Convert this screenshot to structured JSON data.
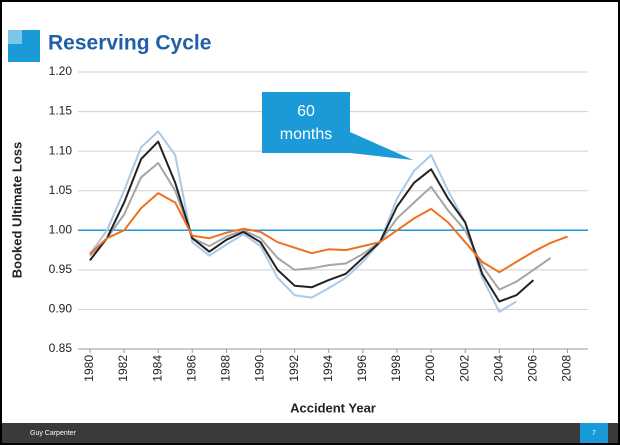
{
  "title": "Reserving Cycle",
  "footer": {
    "source": "Guy Carpenter",
    "page": "7"
  },
  "chart_data": {
    "type": "line",
    "xlabel": "Accident Year",
    "ylabel": "Booked Ultimate Loss",
    "annotation": {
      "lines": [
        "60",
        "months"
      ]
    },
    "x": [
      1980,
      1981,
      1982,
      1983,
      1984,
      1985,
      1986,
      1987,
      1988,
      1989,
      1990,
      1991,
      1992,
      1993,
      1994,
      1995,
      1996,
      1997,
      1998,
      1999,
      2000,
      2001,
      2002,
      2003,
      2004,
      2005,
      2006,
      2007,
      2008
    ],
    "xlim": [
      1979.3,
      2009.2
    ],
    "xticks": [
      1980,
      1982,
      1984,
      1986,
      1988,
      1990,
      1992,
      1994,
      1996,
      1998,
      2000,
      2002,
      2004,
      2006,
      2008
    ],
    "ylim": [
      0.85,
      1.2
    ],
    "yticks": [
      0.85,
      0.95,
      {
        "value": 0.9,
        "label": "0.90"
      },
      {
        "value": 1.0,
        "label": "1.00"
      },
      1.05,
      {
        "value": 1.1,
        "label": "1.10"
      },
      1.15,
      {
        "value": 1.2,
        "label": "1.20"
      }
    ],
    "grid": true,
    "reference_line": {
      "value": 1.0,
      "color": "#1a9ad6"
    },
    "series": [
      {
        "color": "#a9c9e6",
        "values": [
          0.97,
          1.0,
          1.05,
          1.105,
          1.125,
          1.095,
          0.985,
          0.968,
          0.982,
          0.995,
          0.98,
          0.94,
          0.918,
          0.915,
          0.927,
          0.94,
          0.96,
          0.985,
          1.04,
          1.075,
          1.095,
          1.05,
          1.01,
          0.94,
          0.897,
          0.91,
          null,
          null,
          null
        ]
      },
      {
        "color": "#a6a6a6",
        "values": [
          0.968,
          0.99,
          1.02,
          1.067,
          1.085,
          1.05,
          0.99,
          0.98,
          0.992,
          1.0,
          0.99,
          0.965,
          0.95,
          0.952,
          0.956,
          0.958,
          0.97,
          0.985,
          1.015,
          1.035,
          1.055,
          1.025,
          1.0,
          0.955,
          0.925,
          0.935,
          0.95,
          0.965,
          null
        ]
      },
      {
        "color": "#222222",
        "values": [
          0.962,
          0.99,
          1.035,
          1.09,
          1.112,
          1.06,
          0.99,
          0.973,
          0.988,
          0.998,
          0.985,
          0.95,
          0.93,
          0.928,
          0.937,
          0.945,
          0.965,
          0.985,
          1.03,
          1.06,
          1.077,
          1.04,
          1.01,
          0.945,
          0.91,
          0.918,
          0.937,
          null,
          null
        ]
      },
      {
        "color": "#f07020",
        "values": [
          0.97,
          0.99,
          1.0,
          1.028,
          1.047,
          1.035,
          0.993,
          0.99,
          0.997,
          1.002,
          0.998,
          0.985,
          0.978,
          0.971,
          0.976,
          0.975,
          0.98,
          0.985,
          1.0,
          1.015,
          1.027,
          1.01,
          0.985,
          0.96,
          0.947,
          0.96,
          0.973,
          0.984,
          0.992
        ]
      }
    ]
  }
}
